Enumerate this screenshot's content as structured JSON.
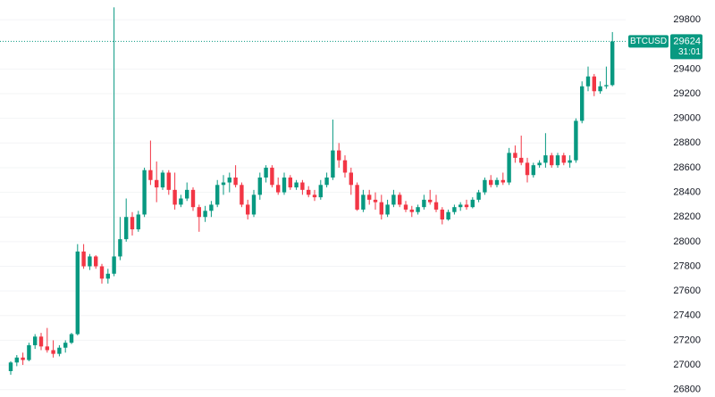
{
  "chart_data": {
    "type": "candlestick",
    "symbol": "BTCUSD",
    "last_price": 29624,
    "countdown": "31:01",
    "up_color": "#089981",
    "down_color": "#f23645",
    "ylim": [
      26740,
      29960
    ],
    "yticks": [
      26800,
      27000,
      27200,
      27400,
      27600,
      27800,
      28000,
      28200,
      28400,
      28600,
      28800,
      29000,
      29200,
      29400,
      29800
    ],
    "open": [
      26950,
      27020,
      27060,
      27040,
      27160,
      27230,
      27150,
      27120,
      27090,
      27140,
      27180,
      27250,
      27920,
      27800,
      27880,
      27800,
      27700,
      27740,
      27880,
      28020,
      28200,
      28100,
      28220,
      28580,
      28500,
      28440,
      28560,
      28420,
      28300,
      28350,
      28420,
      28280,
      28200,
      28250,
      28300,
      28460,
      28480,
      28520,
      28460,
      28300,
      28220,
      28380,
      28520,
      28600,
      28460,
      28400,
      28520,
      28440,
      28480,
      28420,
      28380,
      28360,
      28460,
      28520,
      28740,
      28660,
      28560,
      28460,
      28260,
      28380,
      28340,
      28320,
      28220,
      28300,
      28380,
      28300,
      28260,
      28240,
      28280,
      28340,
      28320,
      28260,
      28180,
      28240,
      28280,
      28300,
      28280,
      28340,
      28400,
      28500,
      28460,
      28500,
      28480,
      28720,
      28680,
      28640,
      28540,
      28620,
      28640,
      28700,
      28620,
      28700,
      28640,
      28660,
      28980,
      29260,
      29340,
      29220,
      29260,
      29270
    ],
    "high": [
      27030,
      27080,
      27100,
      27180,
      27250,
      27260,
      27300,
      27200,
      27160,
      27200,
      27260,
      27980,
      27980,
      27900,
      27890,
      27820,
      27780,
      29900,
      28200,
      28350,
      28240,
      28250,
      28600,
      28820,
      28650,
      28580,
      28580,
      28560,
      28380,
      28480,
      28440,
      28300,
      28290,
      28330,
      28500,
      28540,
      28560,
      28620,
      28480,
      28340,
      28420,
      28560,
      28620,
      28620,
      28520,
      28560,
      28540,
      28500,
      28500,
      28450,
      28420,
      28500,
      28560,
      28990,
      28800,
      28700,
      28600,
      28480,
      28420,
      28420,
      28400,
      28380,
      28340,
      28420,
      28400,
      28330,
      28290,
      28300,
      28380,
      28420,
      28380,
      28280,
      28260,
      28300,
      28320,
      28340,
      28360,
      28420,
      28520,
      28540,
      28520,
      28560,
      28760,
      28780,
      28860,
      28680,
      28640,
      28660,
      28880,
      28720,
      28720,
      28720,
      28700,
      29000,
      29300,
      29420,
      29360,
      29300,
      29420,
      29700
    ],
    "low": [
      26920,
      26990,
      27000,
      27030,
      27130,
      27120,
      27100,
      27060,
      27070,
      27100,
      27170,
      27240,
      27780,
      27770,
      27780,
      27660,
      27660,
      27720,
      27850,
      28000,
      28050,
      28080,
      28200,
      28460,
      28320,
      28420,
      28380,
      28260,
      28280,
      28330,
      28250,
      28080,
      28160,
      28200,
      28280,
      28380,
      28400,
      28440,
      28280,
      28180,
      28200,
      28340,
      28480,
      28440,
      28380,
      28380,
      28420,
      28420,
      28380,
      28360,
      28330,
      28340,
      28440,
      28500,
      28600,
      28520,
      28380,
      28250,
      28240,
      28300,
      28260,
      28180,
      28200,
      28280,
      28280,
      28240,
      28200,
      28220,
      28260,
      28300,
      28240,
      28140,
      28170,
      28220,
      28250,
      28260,
      28270,
      28320,
      28380,
      28440,
      28440,
      28460,
      28460,
      28640,
      28620,
      28480,
      28520,
      28600,
      28600,
      28600,
      28600,
      28620,
      28600,
      28640,
      28960,
      29220,
      29180,
      29200,
      29240,
      29260
    ],
    "close": [
      27020,
      27060,
      27040,
      27160,
      27230,
      27150,
      27120,
      27090,
      27140,
      27180,
      27250,
      27920,
      27800,
      27880,
      27800,
      27700,
      27740,
      27880,
      28020,
      28200,
      28100,
      28220,
      28580,
      28500,
      28440,
      28560,
      28420,
      28300,
      28350,
      28420,
      28280,
      28200,
      28250,
      28300,
      28460,
      28480,
      28520,
      28460,
      28300,
      28220,
      28380,
      28520,
      28600,
      28460,
      28400,
      28520,
      28440,
      28480,
      28420,
      28380,
      28360,
      28460,
      28520,
      28740,
      28660,
      28560,
      28460,
      28260,
      28380,
      28340,
      28320,
      28220,
      28300,
      28380,
      28300,
      28260,
      28240,
      28280,
      28340,
      28320,
      28260,
      28180,
      28240,
      28280,
      28300,
      28280,
      28340,
      28400,
      28500,
      28460,
      28500,
      28480,
      28720,
      28680,
      28640,
      28540,
      28620,
      28640,
      28700,
      28620,
      28700,
      28640,
      28660,
      28980,
      29260,
      29340,
      29220,
      29260,
      29270,
      29624
    ]
  }
}
